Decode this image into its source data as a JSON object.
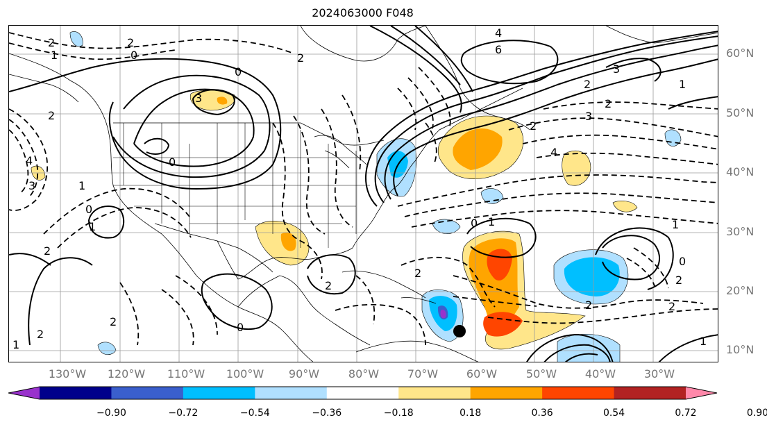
{
  "title": "2024063000 F048",
  "lat_labels": [
    "60°N",
    "50°N",
    "40°N",
    "30°N",
    "20°N",
    "10°N"
  ],
  "lon_labels": [
    "130°W",
    "120°W",
    "110°W",
    "100°W",
    "90°W",
    "80°W",
    "70°W",
    "60°W",
    "50°W",
    "40°W",
    "30°W"
  ],
  "colorbar": {
    "colors": [
      "#9932cc",
      "#00008b",
      "#3a5fcd",
      "#00bfff",
      "#b0e0ff",
      "#ffffff",
      "#ffe68a",
      "#ffa500",
      "#ff4500",
      "#b22222",
      "#ff88aa"
    ],
    "tick_labels": [
      "−0.90",
      "−0.72",
      "−0.54",
      "−0.36",
      "−0.18",
      "0.18",
      "0.36",
      "0.54",
      "0.72",
      "0.90"
    ]
  },
  "contour_labels": [
    "2",
    "1",
    "0",
    "2",
    "3",
    "0",
    "0",
    "2",
    "4",
    "6",
    "3",
    "2",
    "1",
    "2",
    "3",
    "4",
    "2",
    "1",
    "2",
    "0",
    "4",
    "3",
    "2",
    "1",
    "0",
    "1",
    "2",
    "2",
    "1",
    "0",
    "2",
    "2",
    "2",
    "0",
    "2",
    "1",
    "2",
    "1"
  ],
  "marker": {
    "type": "filled-circle",
    "color": "#000000"
  }
}
